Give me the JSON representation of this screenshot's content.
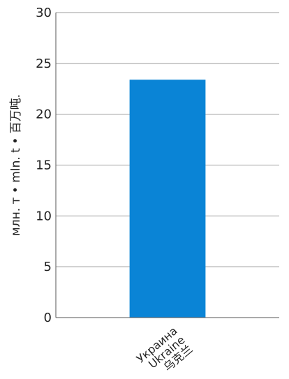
{
  "chart_data": {
    "type": "bar",
    "categories": [
      {
        "lines": [
          "Украина",
          "Ukraine",
          "乌克兰"
        ]
      }
    ],
    "values": [
      23.4
    ],
    "ylabel": "млн. т • mln. t • 百万吨.",
    "ylim": [
      0,
      30
    ],
    "yticks": [
      0,
      5,
      10,
      15,
      20,
      25,
      30
    ],
    "grid": true,
    "colors": {
      "bar": "#0a84d6",
      "grid": "#9e9e9e",
      "axis": "#555555"
    }
  }
}
